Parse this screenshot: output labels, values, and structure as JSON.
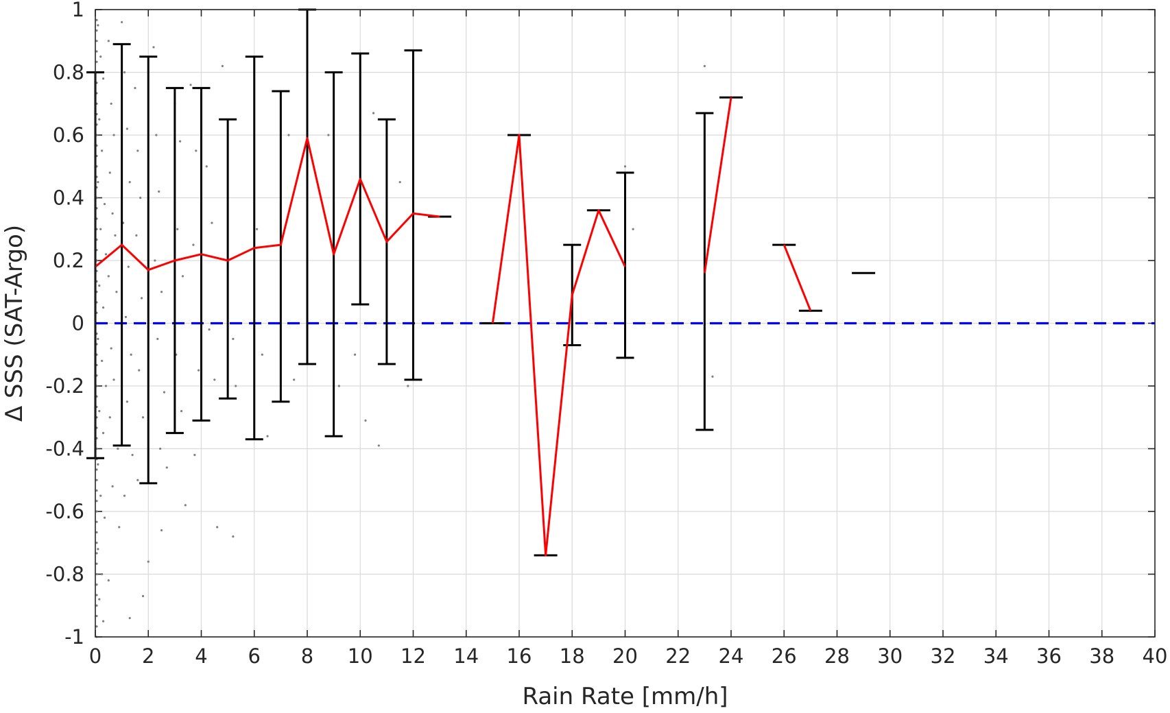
{
  "chart_data": {
    "type": "line",
    "xlabel": "Rain Rate [mm/h]",
    "ylabel": "Δ SSS (SAT-Argo)",
    "xlim": [
      0,
      40
    ],
    "ylim": [
      -1,
      1
    ],
    "xticks": [
      0,
      2,
      4,
      6,
      8,
      10,
      12,
      14,
      16,
      18,
      20,
      22,
      24,
      26,
      28,
      30,
      32,
      34,
      36,
      38,
      40
    ],
    "yticks": [
      -1,
      -0.8,
      -0.6,
      -0.4,
      -0.2,
      0,
      0.2,
      0.4,
      0.6,
      0.8,
      1
    ],
    "xtick_labels": [
      "0",
      "2",
      "4",
      "6",
      "8",
      "10",
      "12",
      "14",
      "16",
      "18",
      "20",
      "22",
      "24",
      "26",
      "28",
      "30",
      "32",
      "34",
      "36",
      "38",
      "40"
    ],
    "ytick_labels": [
      "-1",
      "-0.8",
      "-0.6",
      "-0.4",
      "-0.2",
      "0",
      "0.2",
      "0.4",
      "0.6",
      "0.8",
      "1"
    ],
    "grid": true,
    "colors": {
      "mean_line": "#ff0000",
      "error_bars": "#000000",
      "zero_line": "#0000ff",
      "scatter": "#808080",
      "grid": "#d9d9d9"
    },
    "series": [
      {
        "style": "mean-line",
        "segments": [
          [
            [
              0,
              0.18
            ],
            [
              1,
              0.25
            ],
            [
              2,
              0.17
            ],
            [
              3,
              0.2
            ],
            [
              4,
              0.22
            ],
            [
              5,
              0.2
            ],
            [
              6,
              0.24
            ],
            [
              7,
              0.25
            ],
            [
              8,
              0.59
            ],
            [
              9,
              0.22
            ],
            [
              10,
              0.46
            ],
            [
              11,
              0.26
            ],
            [
              12,
              0.35
            ],
            [
              13,
              0.34
            ]
          ],
          [
            [
              15,
              0.0
            ],
            [
              16,
              0.6
            ],
            [
              17,
              -0.74
            ],
            [
              18,
              0.09
            ],
            [
              19,
              0.36
            ],
            [
              20,
              0.18
            ]
          ],
          [
            [
              23,
              0.16
            ],
            [
              24,
              0.72
            ]
          ],
          [
            [
              26,
              0.25
            ],
            [
              27,
              0.04
            ]
          ]
        ]
      },
      {
        "style": "error-bars",
        "points": [
          {
            "x": 0,
            "low": -0.43,
            "high": 0.8
          },
          {
            "x": 1,
            "low": -0.39,
            "high": 0.89
          },
          {
            "x": 2,
            "low": -0.51,
            "high": 0.85
          },
          {
            "x": 3,
            "low": -0.35,
            "high": 0.75
          },
          {
            "x": 4,
            "low": -0.31,
            "high": 0.75
          },
          {
            "x": 5,
            "low": -0.24,
            "high": 0.65
          },
          {
            "x": 6,
            "low": -0.37,
            "high": 0.85
          },
          {
            "x": 7,
            "low": -0.25,
            "high": 0.74
          },
          {
            "x": 8,
            "low": -0.13,
            "high": 1.0
          },
          {
            "x": 9,
            "low": -0.36,
            "high": 0.8
          },
          {
            "x": 10,
            "low": 0.06,
            "high": 0.86
          },
          {
            "x": 11,
            "low": -0.13,
            "high": 0.65
          },
          {
            "x": 12,
            "low": -0.18,
            "high": 0.87
          },
          {
            "x": 13,
            "low": 0.34,
            "high": 0.34
          },
          {
            "x": 15,
            "low": 0.0,
            "high": 0.0
          },
          {
            "x": 16,
            "low": 0.6,
            "high": 0.6
          },
          {
            "x": 17,
            "low": -0.74,
            "high": -0.74
          },
          {
            "x": 18,
            "low": -0.07,
            "high": 0.25
          },
          {
            "x": 19,
            "low": 0.36,
            "high": 0.36
          },
          {
            "x": 20,
            "low": -0.11,
            "high": 0.48
          },
          {
            "x": 23,
            "low": -0.34,
            "high": 0.67
          },
          {
            "x": 24,
            "low": 0.72,
            "high": 0.72
          },
          {
            "x": 26,
            "low": 0.25,
            "high": 0.25
          },
          {
            "x": 27,
            "low": 0.04,
            "high": 0.04
          },
          {
            "x": 29,
            "low": 0.16,
            "high": 0.16
          }
        ]
      },
      {
        "style": "scatter",
        "points": [
          [
            0.1,
            0.95
          ],
          [
            0.2,
            0.85
          ],
          [
            0.3,
            0.78
          ],
          [
            0.15,
            0.65
          ],
          [
            0.25,
            0.55
          ],
          [
            0.1,
            0.45
          ],
          [
            0.35,
            0.38
          ],
          [
            0.2,
            0.3
          ],
          [
            0.4,
            0.22
          ],
          [
            0.15,
            0.12
          ],
          [
            0.3,
            0.05
          ],
          [
            0.1,
            -0.05
          ],
          [
            0.25,
            -0.12
          ],
          [
            0.4,
            -0.2
          ],
          [
            0.15,
            -0.28
          ],
          [
            0.3,
            -0.35
          ],
          [
            0.1,
            -0.45
          ],
          [
            0.2,
            -0.55
          ],
          [
            0.35,
            -0.62
          ],
          [
            0.1,
            -0.72
          ],
          [
            0.25,
            -0.8
          ],
          [
            0.15,
            -0.88
          ],
          [
            0.3,
            -0.95
          ],
          [
            0.5,
            0.9
          ],
          [
            0.6,
            0.7
          ],
          [
            0.7,
            0.6
          ],
          [
            0.55,
            0.48
          ],
          [
            0.65,
            0.35
          ],
          [
            0.75,
            0.28
          ],
          [
            0.5,
            0.15
          ],
          [
            0.8,
            0.1
          ],
          [
            0.6,
            -0.08
          ],
          [
            0.7,
            -0.18
          ],
          [
            0.55,
            -0.3
          ],
          [
            0.85,
            -0.4
          ],
          [
            0.65,
            -0.52
          ],
          [
            0.9,
            -0.65
          ],
          [
            0.5,
            -0.82
          ],
          [
            1.0,
            0.96
          ],
          [
            1.1,
            0.8
          ],
          [
            1.2,
            0.62
          ],
          [
            1.3,
            0.45
          ],
          [
            1.05,
            0.32
          ],
          [
            1.25,
            0.18
          ],
          [
            1.15,
            0.02
          ],
          [
            1.35,
            -0.1
          ],
          [
            1.2,
            -0.25
          ],
          [
            1.4,
            -0.42
          ],
          [
            1.1,
            -0.55
          ],
          [
            1.3,
            -0.94
          ],
          [
            1.5,
            0.75
          ],
          [
            1.6,
            0.55
          ],
          [
            1.7,
            0.4
          ],
          [
            1.55,
            0.28
          ],
          [
            1.75,
            0.08
          ],
          [
            1.65,
            -0.15
          ],
          [
            1.8,
            -0.3
          ],
          [
            1.6,
            -0.5
          ],
          [
            2.0,
            -0.76
          ],
          [
            1.8,
            -0.87
          ],
          [
            2.2,
            0.88
          ],
          [
            2.3,
            0.6
          ],
          [
            2.4,
            0.42
          ],
          [
            2.25,
            0.2
          ],
          [
            2.5,
            0.1
          ],
          [
            2.35,
            -0.05
          ],
          [
            2.6,
            -0.22
          ],
          [
            2.45,
            -0.4
          ],
          [
            2.7,
            -0.46
          ],
          [
            2.5,
            -0.66
          ],
          [
            3.0,
            0.7
          ],
          [
            3.2,
            0.58
          ],
          [
            3.1,
            0.3
          ],
          [
            3.3,
            0.15
          ],
          [
            3.05,
            -0.1
          ],
          [
            3.25,
            -0.28
          ],
          [
            3.4,
            -0.58
          ],
          [
            3.6,
            0.76
          ],
          [
            3.8,
            0.55
          ],
          [
            3.7,
            0.25
          ],
          [
            3.9,
            -0.15
          ],
          [
            3.75,
            -0.42
          ],
          [
            4.2,
            0.5
          ],
          [
            4.4,
            0.32
          ],
          [
            4.3,
            -0.02
          ],
          [
            4.5,
            -0.18
          ],
          [
            4.6,
            -0.65
          ],
          [
            4.8,
            0.82
          ],
          [
            5.0,
            0.4
          ],
          [
            5.2,
            -0.05
          ],
          [
            5.3,
            -0.2
          ],
          [
            5.2,
            -0.68
          ],
          [
            6.1,
            0.3
          ],
          [
            6.3,
            -0.1
          ],
          [
            6.5,
            -0.36
          ],
          [
            7.3,
            0.6
          ],
          [
            7.5,
            -0.18
          ],
          [
            8.8,
            0.6
          ],
          [
            9.2,
            -0.2
          ],
          [
            9.8,
            -0.1
          ],
          [
            10.2,
            -0.31
          ],
          [
            10.5,
            0.67
          ],
          [
            10.7,
            -0.39
          ],
          [
            11.8,
            -0.2
          ],
          [
            11.5,
            0.45
          ],
          [
            16.3,
            0.6
          ],
          [
            20.0,
            0.5
          ],
          [
            20.3,
            0.3
          ],
          [
            23.0,
            0.82
          ],
          [
            23.3,
            -0.17
          ]
        ]
      },
      {
        "style": "reference-line",
        "y": 0
      }
    ]
  }
}
